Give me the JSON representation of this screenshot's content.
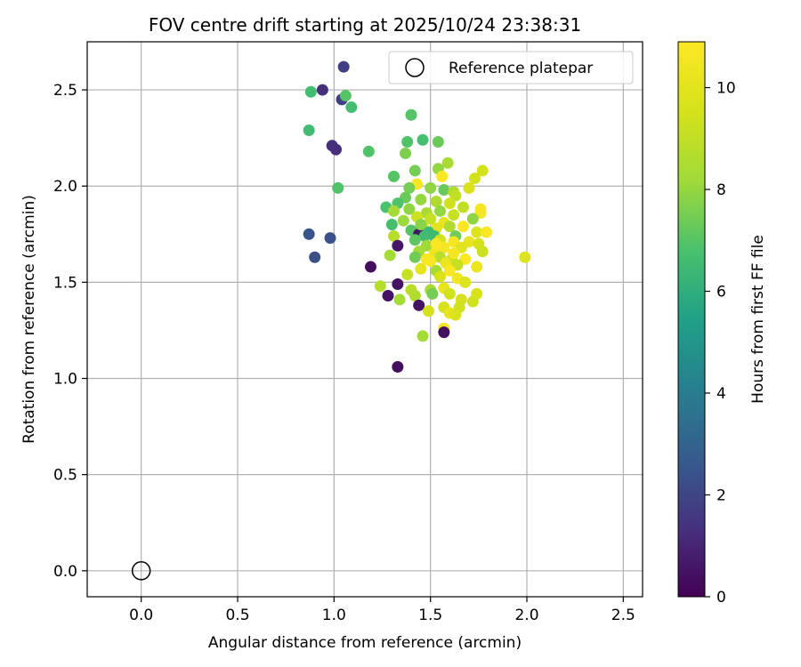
{
  "chart_data": {
    "type": "scatter",
    "title": "FOV centre drift starting at 2025/10/24 23:38:31",
    "xlabel": "Angular distance from reference (arcmin)",
    "ylabel": "Rotation from reference (arcmin)",
    "xlim": [
      -0.28,
      2.6
    ],
    "ylim": [
      -0.135,
      2.75
    ],
    "xticks": [
      "0.0",
      "0.5",
      "1.0",
      "1.5",
      "2.0",
      "2.5"
    ],
    "yticks": [
      "0.0",
      "0.5",
      "1.0",
      "1.5",
      "2.0",
      "2.5"
    ],
    "grid": true,
    "legend": {
      "label": "Reference platepar",
      "placement": "top-right"
    },
    "reference_point": {
      "x": 0.0,
      "y": 0.0
    },
    "colorbar": {
      "label": "Hours from first FF file",
      "range": [
        0,
        10.9
      ],
      "ticks": [
        "0",
        "2",
        "4",
        "6",
        "8",
        "10"
      ],
      "colormap": "viridis"
    },
    "points": [
      {
        "x": 1.05,
        "y": 2.62,
        "c": 1.8
      },
      {
        "x": 0.94,
        "y": 2.5,
        "c": 1.3
      },
      {
        "x": 1.04,
        "y": 2.45,
        "c": 1.8
      },
      {
        "x": 0.88,
        "y": 2.49,
        "c": 6.6
      },
      {
        "x": 1.06,
        "y": 2.47,
        "c": 7.0
      },
      {
        "x": 1.09,
        "y": 2.41,
        "c": 6.6
      },
      {
        "x": 0.87,
        "y": 2.29,
        "c": 6.6
      },
      {
        "x": 0.99,
        "y": 2.21,
        "c": 1.3
      },
      {
        "x": 1.01,
        "y": 2.19,
        "c": 1.3
      },
      {
        "x": 1.4,
        "y": 2.37,
        "c": 6.6
      },
      {
        "x": 1.4,
        "y": 2.37,
        "c": 7.0
      },
      {
        "x": 1.38,
        "y": 2.23,
        "c": 6.9
      },
      {
        "x": 1.46,
        "y": 2.24,
        "c": 6.7
      },
      {
        "x": 1.54,
        "y": 2.23,
        "c": 7.3
      },
      {
        "x": 1.18,
        "y": 2.18,
        "c": 6.9
      },
      {
        "x": 1.37,
        "y": 2.17,
        "c": 7.6
      },
      {
        "x": 1.59,
        "y": 2.12,
        "c": 8.4
      },
      {
        "x": 1.54,
        "y": 2.09,
        "c": 8.0
      },
      {
        "x": 1.42,
        "y": 2.08,
        "c": 7.5
      },
      {
        "x": 1.77,
        "y": 2.08,
        "c": 9.5
      },
      {
        "x": 1.31,
        "y": 2.05,
        "c": 7.0
      },
      {
        "x": 1.73,
        "y": 2.04,
        "c": 9.5
      },
      {
        "x": 1.56,
        "y": 2.05,
        "c": 10.8
      },
      {
        "x": 1.43,
        "y": 2.01,
        "c": 10.7
      },
      {
        "x": 1.02,
        "y": 1.99,
        "c": 6.9
      },
      {
        "x": 1.39,
        "y": 1.99,
        "c": 7.5
      },
      {
        "x": 1.5,
        "y": 1.99,
        "c": 7.9
      },
      {
        "x": 1.57,
        "y": 1.98,
        "c": 7.3
      },
      {
        "x": 1.62,
        "y": 1.97,
        "c": 8.6
      },
      {
        "x": 1.7,
        "y": 1.99,
        "c": 9.6
      },
      {
        "x": 1.63,
        "y": 1.95,
        "c": 9.0
      },
      {
        "x": 1.37,
        "y": 1.94,
        "c": 7.3
      },
      {
        "x": 1.45,
        "y": 1.93,
        "c": 8.0
      },
      {
        "x": 1.53,
        "y": 1.92,
        "c": 8.6
      },
      {
        "x": 1.6,
        "y": 1.91,
        "c": 9.4
      },
      {
        "x": 1.67,
        "y": 1.89,
        "c": 9.0
      },
      {
        "x": 1.76,
        "y": 1.88,
        "c": 10.7
      },
      {
        "x": 1.33,
        "y": 1.91,
        "c": 6.9
      },
      {
        "x": 1.27,
        "y": 1.89,
        "c": 6.8
      },
      {
        "x": 1.39,
        "y": 1.88,
        "c": 7.9
      },
      {
        "x": 1.31,
        "y": 1.87,
        "c": 8.3
      },
      {
        "x": 1.48,
        "y": 1.86,
        "c": 8.4
      },
      {
        "x": 1.55,
        "y": 1.87,
        "c": 8.0
      },
      {
        "x": 1.62,
        "y": 1.85,
        "c": 9.2
      },
      {
        "x": 1.76,
        "y": 1.86,
        "c": 10.6
      },
      {
        "x": 1.43,
        "y": 1.84,
        "c": 9.3
      },
      {
        "x": 1.5,
        "y": 1.83,
        "c": 9.1
      },
      {
        "x": 1.72,
        "y": 1.83,
        "c": 7.9
      },
      {
        "x": 1.36,
        "y": 1.82,
        "c": 8.1
      },
      {
        "x": 1.57,
        "y": 1.81,
        "c": 10.2
      },
      {
        "x": 1.3,
        "y": 1.8,
        "c": 6.7
      },
      {
        "x": 1.46,
        "y": 1.79,
        "c": 9.6
      },
      {
        "x": 1.6,
        "y": 1.79,
        "c": 8.6
      },
      {
        "x": 1.67,
        "y": 1.79,
        "c": 10.9
      },
      {
        "x": 1.53,
        "y": 1.78,
        "c": 9.9
      },
      {
        "x": 1.4,
        "y": 1.77,
        "c": 7.0
      },
      {
        "x": 1.49,
        "y": 1.76,
        "c": 6.4
      },
      {
        "x": 1.74,
        "y": 1.76,
        "c": 9.8
      },
      {
        "x": 1.79,
        "y": 1.76,
        "c": 10.8
      },
      {
        "x": 0.87,
        "y": 1.75,
        "c": 2.5
      },
      {
        "x": 1.44,
        "y": 1.75,
        "c": 0.5
      },
      {
        "x": 1.31,
        "y": 1.74,
        "c": 8.8
      },
      {
        "x": 1.47,
        "y": 1.74,
        "c": 6.6
      },
      {
        "x": 1.52,
        "y": 1.74,
        "c": 6.5
      },
      {
        "x": 1.63,
        "y": 1.74,
        "c": 7.4
      },
      {
        "x": 0.98,
        "y": 1.73,
        "c": 2.4
      },
      {
        "x": 1.42,
        "y": 1.72,
        "c": 7.1
      },
      {
        "x": 1.55,
        "y": 1.72,
        "c": 9.5
      },
      {
        "x": 1.62,
        "y": 1.71,
        "c": 10.6
      },
      {
        "x": 1.7,
        "y": 1.71,
        "c": 10.2
      },
      {
        "x": 1.75,
        "y": 1.7,
        "c": 9.6
      },
      {
        "x": 1.33,
        "y": 1.69,
        "c": 0.6
      },
      {
        "x": 1.48,
        "y": 1.69,
        "c": 8.2
      },
      {
        "x": 1.57,
        "y": 1.68,
        "c": 10.6
      },
      {
        "x": 1.66,
        "y": 1.68,
        "c": 9.9
      },
      {
        "x": 1.44,
        "y": 1.66,
        "c": 8.3
      },
      {
        "x": 1.52,
        "y": 1.65,
        "c": 10.4
      },
      {
        "x": 1.77,
        "y": 1.66,
        "c": 9.3
      },
      {
        "x": 1.29,
        "y": 1.64,
        "c": 8.3
      },
      {
        "x": 1.42,
        "y": 1.63,
        "c": 7.4
      },
      {
        "x": 1.48,
        "y": 1.62,
        "c": 10.8
      },
      {
        "x": 1.55,
        "y": 1.63,
        "c": 8.8
      },
      {
        "x": 1.61,
        "y": 1.62,
        "c": 9.1
      },
      {
        "x": 1.68,
        "y": 1.62,
        "c": 10.9
      },
      {
        "x": 0.9,
        "y": 1.63,
        "c": 2.3
      },
      {
        "x": 1.5,
        "y": 1.61,
        "c": 10.7
      },
      {
        "x": 1.58,
        "y": 1.6,
        "c": 10.3
      },
      {
        "x": 1.64,
        "y": 1.59,
        "c": 9.2
      },
      {
        "x": 1.74,
        "y": 1.58,
        "c": 10.4
      },
      {
        "x": 1.19,
        "y": 1.58,
        "c": 0.4
      },
      {
        "x": 1.45,
        "y": 1.57,
        "c": 10.1
      },
      {
        "x": 1.53,
        "y": 1.56,
        "c": 8.3
      },
      {
        "x": 1.6,
        "y": 1.56,
        "c": 10.8
      },
      {
        "x": 1.38,
        "y": 1.54,
        "c": 9.2
      },
      {
        "x": 1.55,
        "y": 1.53,
        "c": 9.6
      },
      {
        "x": 1.64,
        "y": 1.52,
        "c": 10.5
      },
      {
        "x": 1.68,
        "y": 1.5,
        "c": 9.8
      },
      {
        "x": 1.33,
        "y": 1.49,
        "c": 0.5
      },
      {
        "x": 1.24,
        "y": 1.48,
        "c": 8.7
      },
      {
        "x": 1.4,
        "y": 1.46,
        "c": 8.8
      },
      {
        "x": 1.5,
        "y": 1.46,
        "c": 8.4
      },
      {
        "x": 1.57,
        "y": 1.47,
        "c": 10.3
      },
      {
        "x": 1.51,
        "y": 1.44,
        "c": 7.5
      },
      {
        "x": 1.6,
        "y": 1.44,
        "c": 9.4
      },
      {
        "x": 1.74,
        "y": 1.44,
        "c": 9.6
      },
      {
        "x": 1.28,
        "y": 1.43,
        "c": 0.5
      },
      {
        "x": 1.42,
        "y": 1.43,
        "c": 8.6
      },
      {
        "x": 1.34,
        "y": 1.41,
        "c": 8.3
      },
      {
        "x": 1.66,
        "y": 1.41,
        "c": 9.6
      },
      {
        "x": 1.72,
        "y": 1.4,
        "c": 9.4
      },
      {
        "x": 1.44,
        "y": 1.38,
        "c": 0.5
      },
      {
        "x": 1.57,
        "y": 1.37,
        "c": 9.6
      },
      {
        "x": 1.65,
        "y": 1.37,
        "c": 9.4
      },
      {
        "x": 1.49,
        "y": 1.35,
        "c": 9.5
      },
      {
        "x": 1.6,
        "y": 1.34,
        "c": 10.2
      },
      {
        "x": 1.63,
        "y": 1.33,
        "c": 9.7
      },
      {
        "x": 1.57,
        "y": 1.26,
        "c": 10.6
      },
      {
        "x": 1.57,
        "y": 1.24,
        "c": 0.4
      },
      {
        "x": 1.46,
        "y": 1.22,
        "c": 8.3
      },
      {
        "x": 1.33,
        "y": 1.06,
        "c": 0.4
      },
      {
        "x": 1.99,
        "y": 1.63,
        "c": 9.8
      },
      {
        "x": 1.62,
        "y": 1.65,
        "c": 10.6
      },
      {
        "x": 1.53,
        "y": 1.7,
        "c": 10.8
      },
      {
        "x": 1.45,
        "y": 1.8,
        "c": 7.8
      }
    ]
  }
}
